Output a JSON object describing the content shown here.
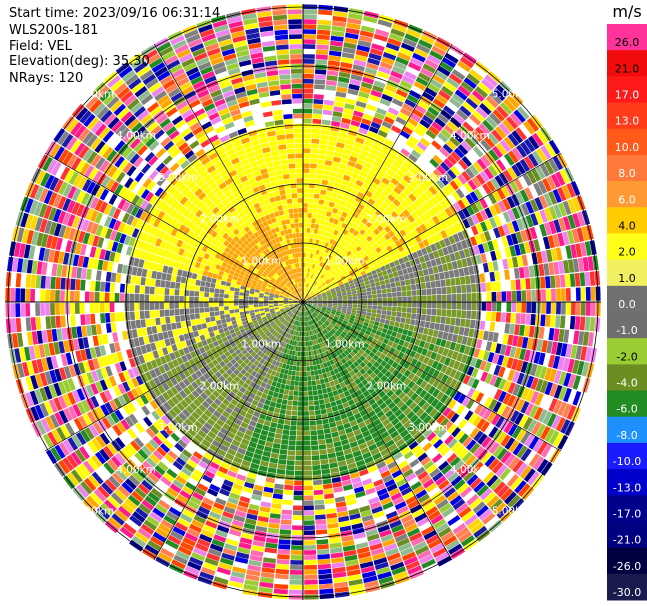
{
  "header": {
    "start_time": "Start time: 2023/09/16 06:31:14",
    "instrument": "WLS200s-181",
    "field": "Field: VEL",
    "elevation": "Elevation(deg): 35.30",
    "nrays": "NRays: 120"
  },
  "chart_data": {
    "type": "heatmap",
    "projection": "polar-ppi",
    "field": "VEL",
    "units": "m/s",
    "n_rays": 120,
    "elevation_deg": 35.3,
    "range_ring_labels": [
      "1.00km",
      "2.00km",
      "3.00km",
      "4.00km",
      "5.00km"
    ],
    "colorbar": {
      "label": "m/s",
      "tick_labels": [
        "26.0",
        "21.0",
        "17.0",
        "13.0",
        "10.0",
        "8.0",
        "6.0",
        "4.0",
        "2.0",
        "1.0",
        "0.0",
        "-1.0",
        "-2.0",
        "-4.0",
        "-6.0",
        "-8.0",
        "-10.0",
        "-13.0",
        "-17.0",
        "-21.0",
        "-26.0",
        "-30.0"
      ],
      "colors": [
        "#ff3399",
        "#f20c0c",
        "#ff1a1a",
        "#ff3b1a",
        "#ff5a1a",
        "#ff7a3a",
        "#ff9a33",
        "#ffcc00",
        "#ffff1a",
        "#f0f060",
        "#707070",
        "#6f6f6f",
        "#9acd32",
        "#6b8e23",
        "#228b22",
        "#1e90ff",
        "#1a1aff",
        "#0000cd",
        "#00008b",
        "#000080",
        "#000040",
        "#1a1a4d"
      ]
    },
    "pattern_colors": [
      "#ff1a8c",
      "#ff3333",
      "#0000e0",
      "#ffff00",
      "#ffa500",
      "#8fbc8f",
      "#ff7f50",
      "#1a1aaa",
      "#9acd32",
      "#ff69b4",
      "#00008b",
      "#ffd700",
      "#ff4500",
      "#6b8e23",
      "#808080",
      "#228b22",
      "#ffffff",
      "#ee82ee"
    ],
    "velocity_zones": [
      {
        "name": "approaching-orange",
        "color": "#ffa500"
      },
      {
        "name": "approaching-yellow",
        "color": "#ffff00"
      },
      {
        "name": "near-zero-gray",
        "color": "#7a7a7a"
      },
      {
        "name": "receding-green",
        "color": "#228b22"
      },
      {
        "name": "receding-olive",
        "color": "#7a9a2a"
      }
    ]
  }
}
